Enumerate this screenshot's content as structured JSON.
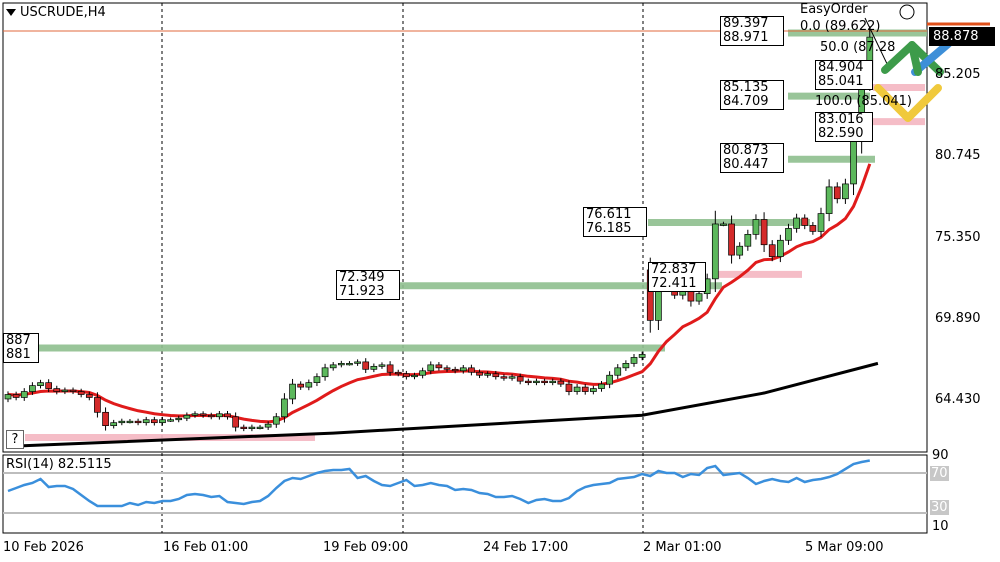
{
  "header": {
    "symbol_timeframe": "USCRUDE,H4",
    "menu_icon": "triangle-down-icon"
  },
  "indicator": {
    "label": "RSI(14) 82.5115"
  },
  "easy_order_label": "EasyOrder",
  "help_button": "?",
  "current_price": "88.878",
  "price_axis": [
    "85.205",
    "80.745",
    "75.350",
    "69.890",
    "64.430"
  ],
  "rsi_axis": {
    "top": "90",
    "upper": "70",
    "lower": "30",
    "bottom": "10"
  },
  "time_axis": [
    "10 Feb 2026",
    "16 Feb 01:00",
    "19 Feb 09:00",
    "24 Feb 17:00",
    "2 Mar 01:00",
    "5 Mar 09:00"
  ],
  "level_labels": [
    {
      "a": "887",
      "b": "881"
    },
    {
      "a": "72.349",
      "b": "71.923"
    },
    {
      "a": "76.611",
      "b": "76.185"
    },
    {
      "a": "80.873",
      "b": "80.447"
    },
    {
      "a": "85.135",
      "b": "84.709"
    },
    {
      "a": "89.397",
      "b": "88.971"
    },
    {
      "a": "72.837",
      "b": "72.411"
    },
    {
      "a": "84.904",
      "b": "85.041"
    },
    {
      "a": "83.016",
      "b": "82.590"
    }
  ],
  "fibo": {
    "f0": "0.0 (89.622)",
    "f50": "50.0 (87.28",
    "f100": "100.0 (85.041)"
  },
  "colors": {
    "bull": "#5cb85c",
    "bear": "#d42a2a",
    "fast_ma": "#e01b1b",
    "slow_ma": "#000000",
    "rsi": "#3a8fdc",
    "zone_green": "#8fbf8f",
    "zone_pink": "#f4b6c2",
    "price_box": "#000000"
  },
  "chart_data": {
    "type": "candlestick",
    "price_range": [
      59.9,
      90.0
    ],
    "closes": [
      64.8,
      64.6,
      65.0,
      65.4,
      65.6,
      65.2,
      65.0,
      65.1,
      65.0,
      64.8,
      64.6,
      63.6,
      62.7,
      62.9,
      63.0,
      63.0,
      62.9,
      63.1,
      62.9,
      63.1,
      63.1,
      63.2,
      63.4,
      63.5,
      63.4,
      63.3,
      63.5,
      63.3,
      62.6,
      62.5,
      62.6,
      62.6,
      62.8,
      63.3,
      64.5,
      65.5,
      65.3,
      65.6,
      66.0,
      66.6,
      66.8,
      66.9,
      66.9,
      67.0,
      66.5,
      66.7,
      66.8,
      66.3,
      66.2,
      66.0,
      66.1,
      66.4,
      66.8,
      66.6,
      66.5,
      66.4,
      66.6,
      66.3,
      66.1,
      66.2,
      66.0,
      65.9,
      66.0,
      65.7,
      65.6,
      65.7,
      65.6,
      65.7,
      65.5,
      65.0,
      65.3,
      65.0,
      65.2,
      65.5,
      66.1,
      66.6,
      66.9,
      67.3,
      67.5,
      69.8,
      72.3,
      72.0,
      71.5,
      72.2,
      71.1,
      71.6,
      72.6,
      76.3,
      76.3,
      74.2,
      74.8,
      75.6,
      76.6,
      74.9,
      74.1,
      75.2,
      76.0,
      76.7,
      76.2,
      75.8,
      77.0,
      78.8,
      78.0,
      79.0,
      82.0,
      86.0,
      88.9
    ],
    "gap_open": {
      "79": 73.2
    },
    "slow_ma": [
      [
        0,
        61.3
      ],
      [
        40,
        62.2
      ],
      [
        78,
        63.4
      ],
      [
        93,
        64.9
      ],
      [
        107,
        66.9
      ]
    ],
    "rsi": [
      52,
      55,
      58,
      60,
      64,
      56,
      57,
      57,
      54,
      48,
      42,
      37,
      37,
      37,
      37,
      40,
      38,
      41,
      40,
      42,
      42,
      44,
      48,
      49,
      48,
      46,
      47,
      41,
      40,
      39,
      41,
      42,
      47,
      55,
      62,
      65,
      64,
      67,
      70,
      72,
      73,
      73,
      74,
      65,
      67,
      62,
      58,
      57,
      60,
      63,
      57,
      58,
      60,
      58,
      57,
      53,
      54,
      53,
      50,
      49,
      46,
      46,
      47,
      44,
      40,
      43,
      44,
      42,
      42,
      45,
      52,
      56,
      58,
      59,
      60,
      64,
      65,
      66,
      69,
      67,
      72,
      70,
      70,
      66,
      69,
      68,
      75,
      77,
      68,
      69,
      70,
      65,
      59,
      62,
      64,
      62,
      61,
      65,
      61,
      63,
      64,
      66,
      69,
      74,
      79,
      81,
      82.5
    ],
    "rsi_levels": [
      70,
      30
    ],
    "zones": [
      {
        "price": 67.94,
        "color": "green"
      },
      {
        "price": 72.13,
        "color": "green"
      },
      {
        "price": 76.4,
        "color": "green"
      },
      {
        "price": 80.66,
        "color": "green"
      },
      {
        "price": 84.92,
        "color": "green"
      },
      {
        "price": 89.18,
        "color": "green"
      },
      {
        "price": 61.9,
        "color": "pink"
      },
      {
        "price": 72.9,
        "color": "pink"
      },
      {
        "price": 83.2,
        "color": "pink"
      },
      {
        "price": 85.5,
        "color": "pink"
      }
    ]
  }
}
